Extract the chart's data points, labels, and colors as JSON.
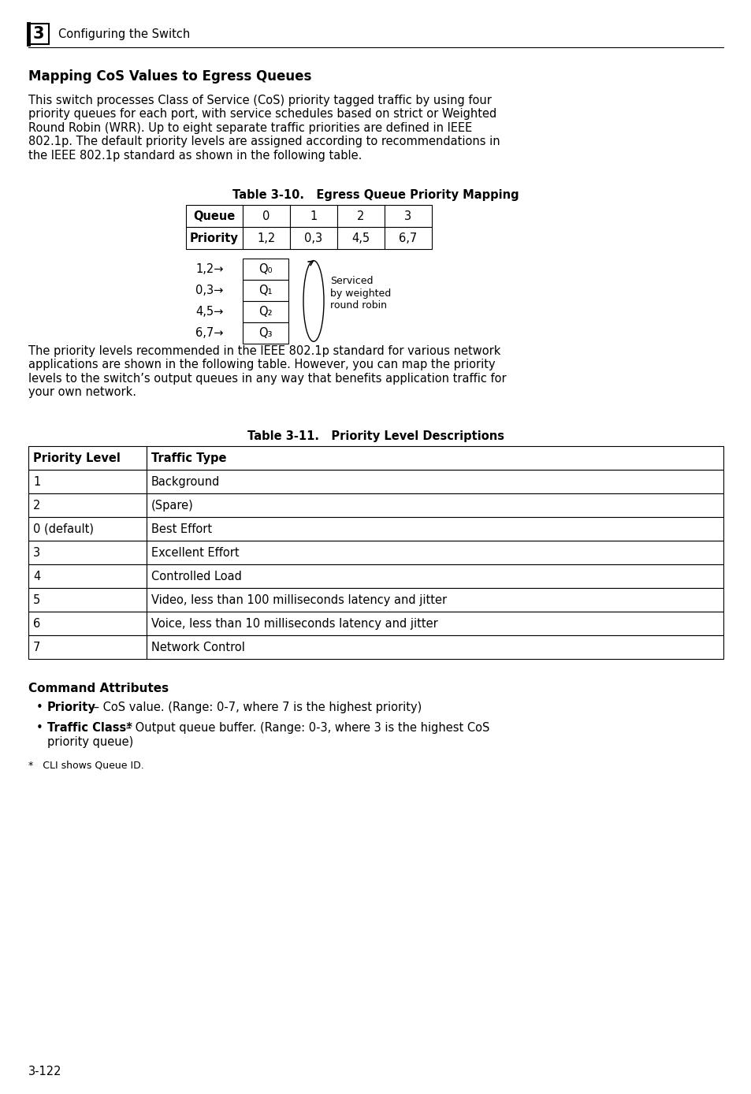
{
  "page_bg": "#ffffff",
  "header_number": "3",
  "header_text": "Configuring the Switch",
  "section_title": "Mapping CoS Values to Egress Queues",
  "body_text1": "This switch processes Class of Service (CoS) priority tagged traffic by using four\npriority queues for each port, with service schedules based on strict or Weighted\nRound Robin (WRR). Up to eight separate traffic priorities are defined in IEEE\n802.1p. The default priority levels are assigned according to recommendations in\nthe IEEE 802.1p standard as shown in the following table.",
  "table1_title": "Table 3-10.   Egress Queue Priority Mapping",
  "table1_headers": [
    "Queue",
    "0",
    "1",
    "2",
    "3"
  ],
  "table1_row": [
    "Priority",
    "1,2",
    "0,3",
    "4,5",
    "6,7"
  ],
  "diagram_rows": [
    {
      "label": "1,2→",
      "queue": "Q₀"
    },
    {
      "label": "0,3→",
      "queue": "Q₁"
    },
    {
      "label": "4,5→",
      "queue": "Q₂"
    },
    {
      "label": "6,7→",
      "queue": "Q₃"
    }
  ],
  "diagram_service_text": "Serviced\nby weighted\nround robin",
  "body_text2": "The priority levels recommended in the IEEE 802.1p standard for various network\napplications are shown in the following table. However, you can map the priority\nlevels to the switch’s output queues in any way that benefits application traffic for\nyour own network.",
  "table2_title": "Table 3-11.   Priority Level Descriptions",
  "table2_headers": [
    "Priority Level",
    "Traffic Type"
  ],
  "table2_rows": [
    [
      "1",
      "Background"
    ],
    [
      "2",
      "(Spare)"
    ],
    [
      "0 (default)",
      "Best Effort"
    ],
    [
      "3",
      "Excellent Effort"
    ],
    [
      "4",
      "Controlled Load"
    ],
    [
      "5",
      "Video, less than 100 milliseconds latency and jitter"
    ],
    [
      "6",
      "Voice, less than 10 milliseconds latency and jitter"
    ],
    [
      "7",
      "Network Control"
    ]
  ],
  "cmd_attr_title": "Command Attributes",
  "bullet1_bold": "Priority",
  "bullet1_rest": " – CoS value. (Range: 0-7, where 7 is the highest priority)",
  "bullet2_bold": "Traffic Class*",
  "bullet2_rest": " – Output queue buffer. (Range: 0-3, where 3 is the highest CoS\npriority queue)",
  "footnote": "*   CLI shows Queue ID.",
  "page_number": "3-122",
  "body_fontsize": 10.5,
  "small_fontsize": 9.0
}
